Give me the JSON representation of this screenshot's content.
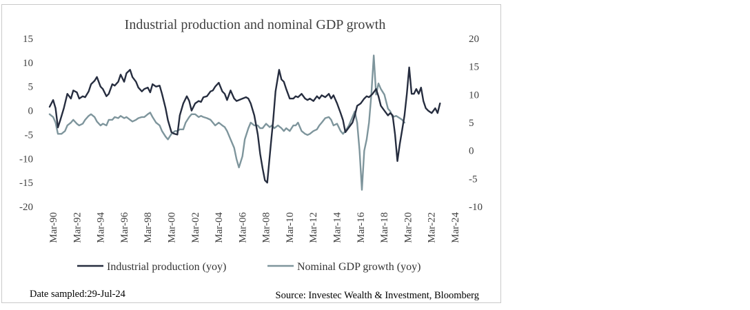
{
  "chart_data": {
    "type": "line",
    "title": "Industrial production and nominal GDP growth",
    "xlabel": "",
    "ylabel": "",
    "x_tick_labels": [
      "Mar-90",
      "Mar-92",
      "Mar-94",
      "Mar-96",
      "Mar-98",
      "Mar-00",
      "Mar-02",
      "Mar-04",
      "Mar-06",
      "Mar-08",
      "Mar-10",
      "Mar-12",
      "Mar-14",
      "Mar-16",
      "Mar-18",
      "Mar-20",
      "Mar-22",
      "Mar-24"
    ],
    "x_range": [
      1990.0,
      2024.5
    ],
    "y_left": {
      "ticks": [
        "15",
        "10",
        "5",
        "0",
        "-5",
        "-10",
        "-15",
        "-20"
      ],
      "range": [
        -20,
        15
      ]
    },
    "y_right": {
      "ticks": [
        "20",
        "15",
        "10",
        "5",
        "0",
        "-5",
        "-10"
      ],
      "range": [
        -10,
        20
      ]
    },
    "series": [
      {
        "name": "Industrial production (yoy)",
        "axis": "left",
        "color": "#262d3f",
        "points": [
          [
            1990.0,
            0.8
          ],
          [
            1990.3,
            2.2
          ],
          [
            1990.5,
            0.5
          ],
          [
            1990.7,
            -3.5
          ],
          [
            1990.9,
            -2.0
          ],
          [
            1991.2,
            0.5
          ],
          [
            1991.5,
            3.5
          ],
          [
            1991.8,
            2.5
          ],
          [
            1992.0,
            4.2
          ],
          [
            1992.3,
            3.8
          ],
          [
            1992.5,
            2.5
          ],
          [
            1992.8,
            3.0
          ],
          [
            1993.0,
            2.8
          ],
          [
            1993.3,
            4.0
          ],
          [
            1993.5,
            5.5
          ],
          [
            1993.8,
            6.2
          ],
          [
            1994.0,
            7.0
          ],
          [
            1994.3,
            5.0
          ],
          [
            1994.5,
            4.5
          ],
          [
            1994.8,
            3.0
          ],
          [
            1995.0,
            3.5
          ],
          [
            1995.3,
            5.5
          ],
          [
            1995.5,
            5.2
          ],
          [
            1995.8,
            6.0
          ],
          [
            1996.0,
            7.5
          ],
          [
            1996.3,
            6.0
          ],
          [
            1996.5,
            7.8
          ],
          [
            1996.8,
            8.5
          ],
          [
            1997.0,
            7.0
          ],
          [
            1997.3,
            6.0
          ],
          [
            1997.5,
            4.8
          ],
          [
            1997.8,
            4.0
          ],
          [
            1998.0,
            4.5
          ],
          [
            1998.3,
            4.8
          ],
          [
            1998.5,
            3.8
          ],
          [
            1998.7,
            5.5
          ],
          [
            1999.0,
            5.0
          ],
          [
            1999.3,
            5.2
          ],
          [
            1999.5,
            3.5
          ],
          [
            1999.8,
            0.5
          ],
          [
            2000.0,
            -2.0
          ],
          [
            2000.3,
            -4.5
          ],
          [
            2000.5,
            -4.8
          ],
          [
            2000.8,
            -5.0
          ],
          [
            2001.0,
            -1.0
          ],
          [
            2001.3,
            1.5
          ],
          [
            2001.6,
            3.0
          ],
          [
            2001.8,
            2.0
          ],
          [
            2002.0,
            0.0
          ],
          [
            2002.3,
            1.5
          ],
          [
            2002.6,
            2.0
          ],
          [
            2002.8,
            1.8
          ],
          [
            2003.0,
            2.8
          ],
          [
            2003.3,
            3.0
          ],
          [
            2003.6,
            4.0
          ],
          [
            2003.8,
            4.2
          ],
          [
            2004.0,
            5.0
          ],
          [
            2004.3,
            5.8
          ],
          [
            2004.6,
            4.0
          ],
          [
            2004.8,
            3.5
          ],
          [
            2005.0,
            2.2
          ],
          [
            2005.3,
            4.2
          ],
          [
            2005.6,
            2.5
          ],
          [
            2005.8,
            2.0
          ],
          [
            2006.0,
            2.2
          ],
          [
            2006.3,
            2.5
          ],
          [
            2006.6,
            2.8
          ],
          [
            2006.8,
            2.5
          ],
          [
            2007.0,
            1.5
          ],
          [
            2007.3,
            -1.0
          ],
          [
            2007.6,
            -5.0
          ],
          [
            2007.8,
            -9.0
          ],
          [
            2008.0,
            -12.0
          ],
          [
            2008.2,
            -14.5
          ],
          [
            2008.4,
            -15.0
          ],
          [
            2008.7,
            -7.0
          ],
          [
            2008.9,
            -2.0
          ],
          [
            2009.1,
            4.0
          ],
          [
            2009.4,
            8.5
          ],
          [
            2009.6,
            6.5
          ],
          [
            2009.8,
            6.0
          ],
          [
            2010.0,
            4.5
          ],
          [
            2010.3,
            2.5
          ],
          [
            2010.6,
            2.5
          ],
          [
            2010.8,
            3.0
          ],
          [
            2011.0,
            2.8
          ],
          [
            2011.3,
            3.5
          ],
          [
            2011.6,
            2.5
          ],
          [
            2011.8,
            2.2
          ],
          [
            2012.0,
            2.5
          ],
          [
            2012.3,
            2.0
          ],
          [
            2012.6,
            3.0
          ],
          [
            2012.8,
            2.5
          ],
          [
            2013.0,
            3.2
          ],
          [
            2013.3,
            2.8
          ],
          [
            2013.6,
            3.5
          ],
          [
            2013.8,
            2.5
          ],
          [
            2014.0,
            3.2
          ],
          [
            2014.3,
            1.5
          ],
          [
            2014.6,
            -0.5
          ],
          [
            2014.8,
            -2.0
          ],
          [
            2015.0,
            -4.5
          ],
          [
            2015.3,
            -3.5
          ],
          [
            2015.6,
            -2.5
          ],
          [
            2015.8,
            -1.0
          ],
          [
            2016.0,
            1.0
          ],
          [
            2016.3,
            1.5
          ],
          [
            2016.6,
            2.5
          ],
          [
            2016.8,
            3.0
          ],
          [
            2017.0,
            2.8
          ],
          [
            2017.3,
            3.5
          ],
          [
            2017.6,
            4.5
          ],
          [
            2017.8,
            3.0
          ],
          [
            2018.0,
            1.0
          ],
          [
            2018.3,
            0.0
          ],
          [
            2018.6,
            -1.0
          ],
          [
            2018.8,
            -0.5
          ],
          [
            2019.0,
            -1.0
          ],
          [
            2019.2,
            -5.0
          ],
          [
            2019.4,
            -10.5
          ],
          [
            2019.6,
            -7.0
          ],
          [
            2019.8,
            -4.0
          ],
          [
            2020.0,
            -1.0
          ],
          [
            2020.2,
            3.5
          ],
          [
            2020.4,
            9.0
          ],
          [
            2020.6,
            3.5
          ],
          [
            2020.8,
            3.5
          ],
          [
            2021.0,
            4.5
          ],
          [
            2021.2,
            3.5
          ],
          [
            2021.4,
            4.8
          ],
          [
            2021.6,
            2.0
          ],
          [
            2021.8,
            0.5
          ],
          [
            2022.0,
            0.0
          ],
          [
            2022.3,
            -0.5
          ],
          [
            2022.6,
            0.5
          ],
          [
            2022.8,
            -0.5
          ],
          [
            2023.0,
            1.5
          ]
        ]
      },
      {
        "name": "Nominal GDP growth (yoy)",
        "axis": "right",
        "color": "#7e959c",
        "points": [
          [
            1990.0,
            6.5
          ],
          [
            1990.3,
            6.0
          ],
          [
            1990.5,
            5.0
          ],
          [
            1990.7,
            3.0
          ],
          [
            1991.0,
            3.0
          ],
          [
            1991.3,
            3.5
          ],
          [
            1991.5,
            4.5
          ],
          [
            1991.8,
            5.0
          ],
          [
            1992.0,
            5.5
          ],
          [
            1992.3,
            4.8
          ],
          [
            1992.5,
            4.5
          ],
          [
            1992.8,
            4.8
          ],
          [
            1993.0,
            5.5
          ],
          [
            1993.3,
            6.2
          ],
          [
            1993.5,
            6.5
          ],
          [
            1993.8,
            6.0
          ],
          [
            1994.0,
            5.2
          ],
          [
            1994.3,
            4.5
          ],
          [
            1994.5,
            4.8
          ],
          [
            1994.8,
            4.5
          ],
          [
            1995.0,
            5.5
          ],
          [
            1995.3,
            5.5
          ],
          [
            1995.5,
            6.0
          ],
          [
            1995.8,
            5.8
          ],
          [
            1996.0,
            6.2
          ],
          [
            1996.3,
            5.8
          ],
          [
            1996.5,
            6.0
          ],
          [
            1996.8,
            5.5
          ],
          [
            1997.0,
            5.2
          ],
          [
            1997.3,
            5.5
          ],
          [
            1997.5,
            5.8
          ],
          [
            1997.8,
            6.0
          ],
          [
            1998.0,
            6.0
          ],
          [
            1998.3,
            6.5
          ],
          [
            1998.5,
            6.8
          ],
          [
            1998.7,
            6.0
          ],
          [
            1999.0,
            5.0
          ],
          [
            1999.3,
            4.5
          ],
          [
            1999.5,
            3.5
          ],
          [
            1999.8,
            2.5
          ],
          [
            2000.0,
            2.0
          ],
          [
            2000.3,
            3.0
          ],
          [
            2000.6,
            3.5
          ],
          [
            2000.8,
            3.5
          ],
          [
            2001.0,
            3.8
          ],
          [
            2001.3,
            3.8
          ],
          [
            2001.5,
            5.0
          ],
          [
            2001.8,
            6.0
          ],
          [
            2002.0,
            6.5
          ],
          [
            2002.3,
            6.5
          ],
          [
            2002.6,
            6.0
          ],
          [
            2002.8,
            6.2
          ],
          [
            2003.0,
            6.0
          ],
          [
            2003.3,
            5.8
          ],
          [
            2003.6,
            5.5
          ],
          [
            2003.8,
            5.0
          ],
          [
            2004.0,
            4.5
          ],
          [
            2004.3,
            5.0
          ],
          [
            2004.6,
            4.5
          ],
          [
            2004.8,
            4.2
          ],
          [
            2005.0,
            3.5
          ],
          [
            2005.3,
            2.0
          ],
          [
            2005.6,
            0.5
          ],
          [
            2005.8,
            -1.5
          ],
          [
            2006.0,
            -3.0
          ],
          [
            2006.3,
            -1.0
          ],
          [
            2006.5,
            2.0
          ],
          [
            2006.8,
            4.0
          ],
          [
            2007.0,
            5.0
          ],
          [
            2007.3,
            4.5
          ],
          [
            2007.6,
            4.5
          ],
          [
            2007.8,
            4.0
          ],
          [
            2008.0,
            4.0
          ],
          [
            2008.3,
            4.8
          ],
          [
            2008.6,
            4.2
          ],
          [
            2008.8,
            4.5
          ],
          [
            2009.0,
            4.0
          ],
          [
            2009.3,
            4.5
          ],
          [
            2009.6,
            4.0
          ],
          [
            2009.8,
            3.5
          ],
          [
            2010.0,
            4.0
          ],
          [
            2010.3,
            3.5
          ],
          [
            2010.6,
            4.5
          ],
          [
            2010.8,
            4.5
          ],
          [
            2011.0,
            5.0
          ],
          [
            2011.3,
            3.5
          ],
          [
            2011.6,
            3.0
          ],
          [
            2011.8,
            2.8
          ],
          [
            2012.0,
            3.0
          ],
          [
            2012.3,
            3.5
          ],
          [
            2012.6,
            3.8
          ],
          [
            2012.8,
            4.5
          ],
          [
            2013.0,
            5.0
          ],
          [
            2013.3,
            5.8
          ],
          [
            2013.6,
            6.0
          ],
          [
            2013.8,
            5.5
          ],
          [
            2014.0,
            4.5
          ],
          [
            2014.3,
            4.8
          ],
          [
            2014.6,
            3.5
          ],
          [
            2014.8,
            3.0
          ],
          [
            2015.0,
            3.5
          ],
          [
            2015.3,
            4.5
          ],
          [
            2015.6,
            6.0
          ],
          [
            2015.8,
            7.0
          ],
          [
            2016.0,
            5.0
          ],
          [
            2016.2,
            0.0
          ],
          [
            2016.4,
            -7.0
          ],
          [
            2016.6,
            0.0
          ],
          [
            2016.8,
            2.0
          ],
          [
            2017.0,
            5.0
          ],
          [
            2017.2,
            10.0
          ],
          [
            2017.4,
            17.0
          ],
          [
            2017.6,
            10.0
          ],
          [
            2017.8,
            12.0
          ],
          [
            2018.0,
            11.0
          ],
          [
            2018.3,
            10.0
          ],
          [
            2018.6,
            7.5
          ],
          [
            2018.8,
            7.0
          ],
          [
            2019.0,
            6.0
          ],
          [
            2019.3,
            6.2
          ],
          [
            2019.6,
            5.8
          ],
          [
            2019.8,
            5.5
          ],
          [
            2020.0,
            5.0
          ]
        ]
      }
    ],
    "legend_position": "bottom",
    "grid": false
  },
  "footer": {
    "date_sampled": "Date sampled:29-Jul-24",
    "source": "Source: Investec Wealth & Investment, Bloomberg"
  }
}
